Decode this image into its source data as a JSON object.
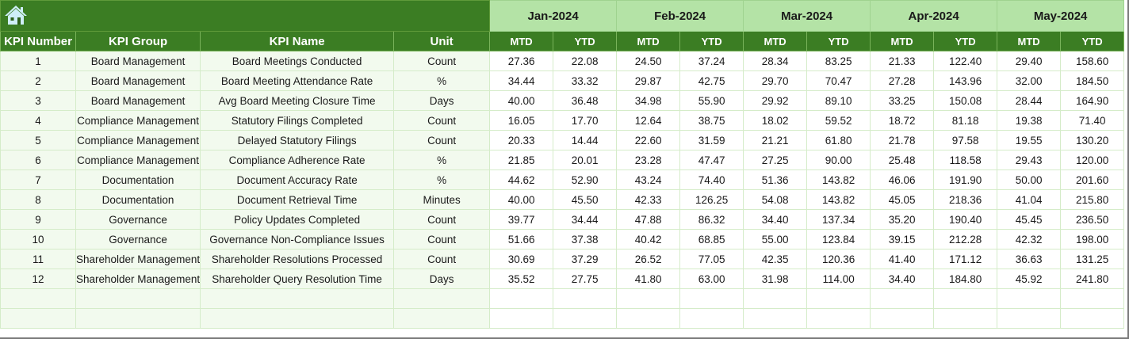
{
  "banner": {
    "home_icon": "home-icon",
    "months": [
      "Jan-2024",
      "Feb-2024",
      "Mar-2024",
      "Apr-2024",
      "May-2024"
    ]
  },
  "header": {
    "kpi_number": "KPI Number",
    "kpi_group": "KPI Group",
    "kpi_name": "KPI Name",
    "unit": "Unit",
    "mtd": "MTD",
    "ytd": "YTD"
  },
  "colors": {
    "dark_green": "#3b7d23",
    "light_green_header": "#b4e3a6",
    "row_tint": "#f2faee",
    "grid_line": "#d5ecc9"
  },
  "rows": [
    {
      "num": "1",
      "group": "Board Management",
      "name": "Board Meetings Conducted",
      "unit": "Count",
      "values": [
        "27.36",
        "22.08",
        "24.50",
        "37.24",
        "28.34",
        "83.25",
        "21.33",
        "122.40",
        "29.40",
        "158.60"
      ]
    },
    {
      "num": "2",
      "group": "Board Management",
      "name": "Board Meeting Attendance Rate",
      "unit": "%",
      "values": [
        "34.44",
        "33.32",
        "29.87",
        "42.75",
        "29.70",
        "70.47",
        "27.28",
        "143.96",
        "32.00",
        "184.50"
      ]
    },
    {
      "num": "3",
      "group": "Board Management",
      "name": "Avg Board Meeting Closure Time",
      "unit": "Days",
      "values": [
        "40.00",
        "36.48",
        "34.98",
        "55.90",
        "29.92",
        "89.10",
        "33.25",
        "150.08",
        "28.44",
        "164.90"
      ]
    },
    {
      "num": "4",
      "group": "Compliance Management",
      "name": "Statutory Filings Completed",
      "unit": "Count",
      "values": [
        "16.05",
        "17.70",
        "12.64",
        "38.75",
        "18.02",
        "59.52",
        "18.72",
        "81.18",
        "19.38",
        "71.40"
      ]
    },
    {
      "num": "5",
      "group": "Compliance Management",
      "name": "Delayed Statutory Filings",
      "unit": "Count",
      "values": [
        "20.33",
        "14.44",
        "22.60",
        "31.59",
        "21.21",
        "61.80",
        "21.78",
        "97.58",
        "19.55",
        "130.20"
      ]
    },
    {
      "num": "6",
      "group": "Compliance Management",
      "name": "Compliance Adherence Rate",
      "unit": "%",
      "values": [
        "21.85",
        "20.01",
        "23.28",
        "47.47",
        "27.25",
        "90.00",
        "25.48",
        "118.58",
        "29.43",
        "120.00"
      ]
    },
    {
      "num": "7",
      "group": "Documentation",
      "name": "Document Accuracy Rate",
      "unit": "%",
      "values": [
        "44.62",
        "52.90",
        "43.24",
        "74.40",
        "51.36",
        "143.82",
        "46.06",
        "191.90",
        "50.00",
        "201.60"
      ]
    },
    {
      "num": "8",
      "group": "Documentation",
      "name": "Document Retrieval Time",
      "unit": "Minutes",
      "values": [
        "40.00",
        "45.50",
        "42.33",
        "126.25",
        "54.08",
        "143.82",
        "45.05",
        "218.36",
        "41.04",
        "215.80"
      ]
    },
    {
      "num": "9",
      "group": "Governance",
      "name": "Policy Updates Completed",
      "unit": "Count",
      "values": [
        "39.77",
        "34.44",
        "47.88",
        "86.32",
        "34.40",
        "137.34",
        "35.20",
        "190.40",
        "45.45",
        "236.50"
      ]
    },
    {
      "num": "10",
      "group": "Governance",
      "name": "Governance Non-Compliance Issues",
      "unit": "Count",
      "values": [
        "51.66",
        "37.38",
        "40.42",
        "68.85",
        "55.00",
        "123.84",
        "39.15",
        "212.28",
        "42.32",
        "198.00"
      ]
    },
    {
      "num": "11",
      "group": "Shareholder Management",
      "name": "Shareholder Resolutions Processed",
      "unit": "Count",
      "values": [
        "30.69",
        "37.29",
        "26.52",
        "77.05",
        "42.35",
        "120.36",
        "41.40",
        "171.12",
        "36.63",
        "131.25"
      ]
    },
    {
      "num": "12",
      "group": "Shareholder Management",
      "name": "Shareholder Query Resolution Time",
      "unit": "Days",
      "values": [
        "35.52",
        "27.75",
        "41.80",
        "63.00",
        "31.98",
        "114.00",
        "34.40",
        "184.80",
        "45.92",
        "241.80"
      ]
    }
  ],
  "empty_rows": 2
}
